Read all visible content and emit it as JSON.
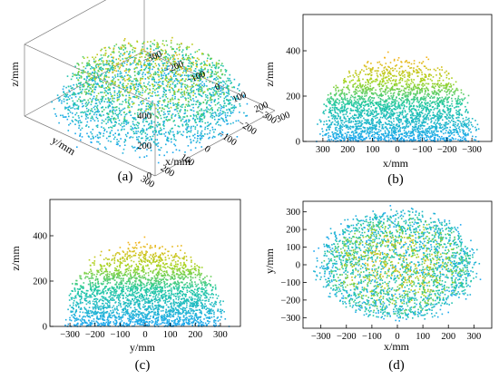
{
  "panels": [
    {
      "caption": "(a)",
      "chart_data": {
        "type": "scatter",
        "view": "3d",
        "shape": "hemisphere point cloud, colored by height (blue at z=0 to orange at top)",
        "xlabel": "x/mm",
        "ylabel": "y/mm",
        "zlabel": "z/mm",
        "xticks": [
          300,
          200,
          100,
          0,
          -100,
          -200,
          -300
        ],
        "yticks": [
          300,
          200,
          100,
          0,
          -100,
          -200,
          -300
        ],
        "zticks": [
          0,
          200,
          400
        ],
        "xlim": [
          -300,
          300
        ],
        "ylim": [
          -300,
          300
        ],
        "zlim": [
          0,
          400
        ],
        "radius_mm": 300,
        "height_mm": 370,
        "grid": false
      }
    },
    {
      "caption": "(b)",
      "chart_data": {
        "type": "scatter",
        "view": "side projection x-z",
        "xlabel": "x/mm",
        "ylabel": "z/mm",
        "xticks": [
          300,
          200,
          100,
          0,
          -100,
          -200,
          -300
        ],
        "yticks": [
          0,
          200,
          400
        ],
        "xlim": [
          380,
          -380
        ],
        "ylim": [
          0,
          560
        ],
        "x_reversed": true,
        "radius_mm": 300,
        "height_mm": 370,
        "grid": false
      }
    },
    {
      "caption": "(c)",
      "chart_data": {
        "type": "scatter",
        "view": "side projection y-z",
        "xlabel": "y/mm",
        "ylabel": "z/mm",
        "xticks": [
          -300,
          -200,
          -100,
          0,
          100,
          200,
          300
        ],
        "yticks": [
          0,
          200,
          400
        ],
        "xlim": [
          -380,
          380
        ],
        "ylim": [
          0,
          560
        ],
        "radius_mm": 300,
        "height_mm": 370,
        "grid": false
      }
    },
    {
      "caption": "(d)",
      "chart_data": {
        "type": "scatter",
        "view": "top projection x-y",
        "xlabel": "x/mm",
        "ylabel": "y/mm",
        "xticks": [
          -300,
          -200,
          -100,
          0,
          100,
          200,
          300
        ],
        "yticks": [
          -300,
          -200,
          -100,
          0,
          100,
          200,
          300
        ],
        "xlim": [
          -370,
          370
        ],
        "ylim": [
          -360,
          360
        ],
        "radius_mm": 300,
        "height_mm": 370,
        "grid": false
      }
    }
  ],
  "colors": {
    "low": "#1ea7f2",
    "mid": "#22c8a0",
    "upper": "#a6d41e",
    "top": "#f4b21a"
  }
}
